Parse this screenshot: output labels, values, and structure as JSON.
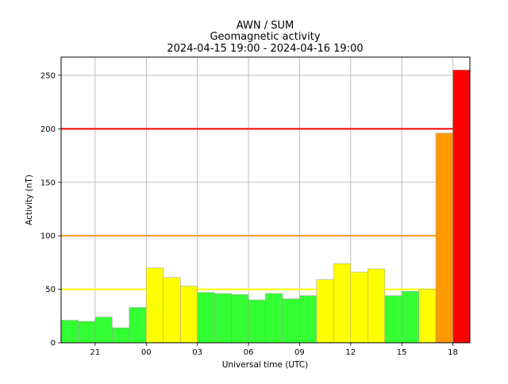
{
  "chart_data": {
    "type": "bar",
    "title_lines": [
      "AWN / SUM",
      "Geomagnetic activity",
      "2024-04-15 19:00 - 2024-04-16 19:00"
    ],
    "xlabel": "Universal time (UTC)",
    "ylabel": "Activity (nT)",
    "ylim": [
      0,
      267
    ],
    "xlim_hours_from_start": [
      0,
      24
    ],
    "yticks": [
      0,
      50,
      100,
      150,
      200,
      250
    ],
    "xtick_labels": [
      "21",
      "00",
      "03",
      "06",
      "09",
      "12",
      "15",
      "18"
    ],
    "xtick_hours_from_start": [
      2,
      5,
      8,
      11,
      14,
      17,
      20,
      23
    ],
    "grid": true,
    "legend": "none",
    "categories": [
      "19:00",
      "20:00",
      "21:00",
      "22:00",
      "23:00",
      "00:00",
      "01:00",
      "02:00",
      "03:00",
      "04:00",
      "05:00",
      "06:00",
      "07:00",
      "08:00",
      "09:00",
      "10:00",
      "11:00",
      "12:00",
      "13:00",
      "14:00",
      "15:00",
      "16:00",
      "17:00",
      "18:00"
    ],
    "values": [
      21,
      20,
      24,
      14,
      33,
      70,
      61,
      53,
      47,
      46,
      45,
      40,
      46,
      41,
      44,
      59,
      74,
      66,
      69,
      44,
      48,
      50,
      196,
      255
    ],
    "thresholds": [
      {
        "value": 50,
        "color": "#ffff00"
      },
      {
        "value": 100,
        "color": "#ff9900"
      },
      {
        "value": 200,
        "color": "#ff0000"
      }
    ],
    "colors": {
      "quiet": "#33ff33",
      "moderate": "#ffff00",
      "active": "#ff9900",
      "storm": "#ff0000",
      "grid": "#b0b0b0"
    }
  }
}
